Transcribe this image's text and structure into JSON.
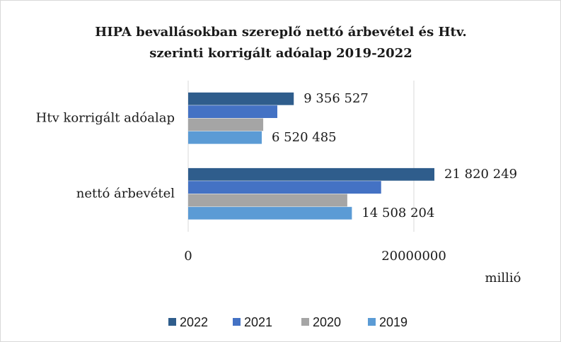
{
  "chart_data": {
    "type": "hbar",
    "title": "HIPA bevallásokban szereplő nettó árbevétel és Htv. szerinti korrigált adóalap 2019-2022",
    "categories": [
      "Htv korrigált adóalap",
      "nettó árbevétel"
    ],
    "series": [
      {
        "name": "2022",
        "color": "#2f5d8c",
        "values": [
          9356527,
          21820249
        ],
        "value_labels": [
          "9 356 527",
          "21 820 249"
        ]
      },
      {
        "name": "2021",
        "color": "#4472c4",
        "values": [
          7900000,
          17100000
        ],
        "value_labels": [
          null,
          null
        ]
      },
      {
        "name": "2020",
        "color": "#a5a5a5",
        "values": [
          6650000,
          14100000
        ],
        "value_labels": [
          null,
          null
        ]
      },
      {
        "name": "2019",
        "color": "#5b9bd5",
        "values": [
          6520485,
          14508204
        ],
        "value_labels": [
          "6 520 485",
          "14 508 204"
        ]
      }
    ],
    "xlim": [
      0,
      30000000
    ],
    "xticks": [
      0,
      20000000
    ],
    "xlabel": "millió",
    "grid": true,
    "legend": "bottom"
  }
}
